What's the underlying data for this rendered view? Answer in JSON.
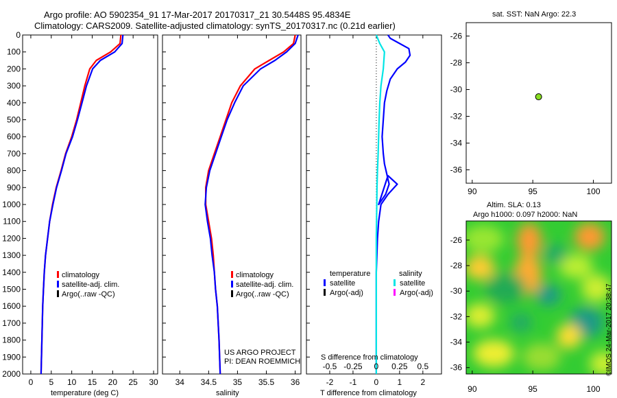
{
  "header": {
    "line1": "Argo profile: AO 5902354_91 17-Mar-2017 20170317_21 30.5448S 95.4834E",
    "line2": "Climatology: CARS2009. Satellite-adjusted climatology: synTS_20170317.nc (0.21d earlier)"
  },
  "colors": {
    "climatology": "#ff0000",
    "satellite": "#0000ff",
    "argo": "#000000",
    "salinity_satellite": "#00e5e5",
    "salinity_argo": "#ff00ff",
    "argo_marker": "#88dd22"
  },
  "chart_data": [
    {
      "type": "line",
      "name": "temperature-profile",
      "xlabel": "temperature (deg C)",
      "xlim": [
        -2,
        31
      ],
      "ylim": [
        2000,
        0
      ],
      "xticks": [
        0,
        5,
        10,
        15,
        20,
        25,
        30
      ],
      "yticks": [
        0,
        100,
        200,
        300,
        400,
        500,
        600,
        700,
        800,
        900,
        1000,
        1100,
        1200,
        1300,
        1400,
        1500,
        1600,
        1700,
        1800,
        1900,
        2000
      ],
      "legend": [
        "climatology",
        "satellite-adj. clim.",
        "Argo(..raw -QC)"
      ],
      "series": [
        {
          "name": "climatology",
          "x": [
            22.0,
            21.8,
            19.5,
            16,
            14.4,
            13.2,
            12.2,
            11.2,
            10.0,
            8.5,
            7.4,
            6.2,
            5.3,
            4.6,
            4.1,
            3.6,
            3.3,
            3.1,
            2.9,
            2.7,
            2.5
          ],
          "y": [
            0,
            50,
            100,
            150,
            200,
            300,
            400,
            500,
            600,
            700,
            800,
            900,
            1000,
            1100,
            1200,
            1300,
            1400,
            1500,
            1600,
            1800,
            2000
          ]
        },
        {
          "name": "satellite-adj. clim.",
          "x": [
            22.5,
            22.3,
            20.5,
            17,
            15.1,
            13.6,
            12.5,
            11.4,
            10.2,
            8.6,
            7.5,
            6.3,
            5.4,
            4.6,
            4.1,
            3.6,
            3.3,
            3.1,
            2.9,
            2.7,
            2.5
          ],
          "y": [
            0,
            50,
            100,
            150,
            200,
            300,
            400,
            500,
            600,
            700,
            800,
            900,
            1000,
            1100,
            1200,
            1300,
            1400,
            1500,
            1600,
            1800,
            2000
          ]
        }
      ]
    },
    {
      "type": "line",
      "name": "salinity-profile",
      "xlabel": "salinity",
      "xlim": [
        33.7,
        36.1
      ],
      "ylim": [
        2000,
        0
      ],
      "xticks": [
        34,
        34.5,
        35,
        35.5,
        36
      ],
      "legend": [
        "climatology",
        "satellite-adj. clim.",
        "Argo(..raw -QC)"
      ],
      "annotation": [
        "US ARGO PROJECT",
        "PI: DEAN ROEMMICH"
      ],
      "series": [
        {
          "name": "climatology",
          "x": [
            36.0,
            35.97,
            35.8,
            35.55,
            35.3,
            35.05,
            34.9,
            34.8,
            34.7,
            34.6,
            34.5,
            34.45,
            34.45,
            34.5,
            34.55,
            34.58,
            34.6,
            34.62,
            34.65,
            34.68,
            34.7
          ],
          "y": [
            0,
            50,
            100,
            150,
            200,
            300,
            400,
            500,
            600,
            700,
            800,
            900,
            1000,
            1100,
            1200,
            1300,
            1400,
            1500,
            1600,
            1800,
            2000
          ]
        },
        {
          "name": "satellite-adj. clim.",
          "x": [
            36.05,
            36.0,
            35.85,
            35.65,
            35.4,
            35.1,
            34.95,
            34.82,
            34.72,
            34.62,
            34.52,
            34.46,
            34.44,
            34.48,
            34.53,
            34.56,
            34.6,
            34.62,
            34.65,
            34.68,
            34.7
          ],
          "y": [
            0,
            50,
            100,
            150,
            200,
            300,
            400,
            500,
            600,
            700,
            800,
            900,
            1000,
            1100,
            1200,
            1300,
            1400,
            1500,
            1600,
            1800,
            2000
          ]
        }
      ]
    },
    {
      "type": "line",
      "name": "difference-profile",
      "xlabel": "T difference from climatology",
      "xlabel2": "S difference from climatology",
      "xlim": [
        -3,
        2.8
      ],
      "ylim": [
        2000,
        0
      ],
      "xticks": [
        -2,
        -1,
        0,
        1,
        2
      ],
      "sticks_values": [
        -0.5,
        -0.25,
        0,
        0.25,
        0.5
      ],
      "sticks_labels": [
        "-0.5",
        "-0.25",
        "0",
        "0.25",
        "0.5"
      ],
      "legend_titles": [
        "temperature",
        "salinity"
      ],
      "legend_left": [
        "satellite",
        "Argo(-adj)"
      ],
      "legend_right": [
        "satellite",
        "Argo(-adj)"
      ],
      "series": [
        {
          "name": "temperature satellite",
          "x": [
            0.5,
            0.6,
            1.0,
            1.4,
            1.45,
            1.25,
            0.9,
            0.6,
            0.45,
            0.35,
            0.3,
            0.25,
            0.3,
            0.35,
            0.45,
            0.55,
            0.4,
            0.1,
            0.5,
            0.9,
            0.5,
            0.2,
            0.1,
            0.05,
            0.0,
            0.0,
            0.0,
            0.0
          ],
          "y": [
            0,
            20,
            50,
            80,
            120,
            160,
            200,
            260,
            330,
            400,
            500,
            600,
            700,
            760,
            820,
            880,
            940,
            1000,
            830,
            880,
            940,
            1000,
            1100,
            1200,
            1400,
            1600,
            1800,
            2000
          ]
        },
        {
          "name": "salinity satellite",
          "x": [
            0.0,
            0.15,
            0.35,
            0.3,
            0.2,
            0.15,
            0.12,
            0.1,
            0.08,
            0.05,
            0.03,
            0.02,
            0.0,
            0.0,
            0.0,
            0.0
          ],
          "y": [
            0,
            50,
            100,
            200,
            300,
            400,
            500,
            600,
            700,
            800,
            900,
            1000,
            1200,
            1400,
            1700,
            2000
          ]
        }
      ]
    },
    {
      "type": "scatter",
      "name": "position-map",
      "title": "sat. SST: NaN Argo: 22.3",
      "xlim": [
        89.5,
        101.5
      ],
      "ylim": [
        -37,
        -25
      ],
      "xticks": [
        90,
        95,
        100
      ],
      "yticks": [
        -26,
        -28,
        -30,
        -32,
        -34,
        -36
      ],
      "points": [
        {
          "x": 95.48,
          "y": -30.54
        }
      ]
    },
    {
      "type": "heatmap",
      "name": "altimetry-map",
      "title1": "Altim. SLA: 0.13",
      "title2": "Argo h1000: 0.097 h2000: NaN",
      "xlim": [
        89.5,
        101.5
      ],
      "ylim": [
        -36.5,
        -24.5
      ],
      "xticks": [
        90,
        95,
        100
      ],
      "yticks": [
        -26,
        -28,
        -30,
        -32,
        -34,
        -36
      ]
    }
  ],
  "footer": {
    "credit": "©IMOS 24-Mar-2017 20:38:47"
  }
}
